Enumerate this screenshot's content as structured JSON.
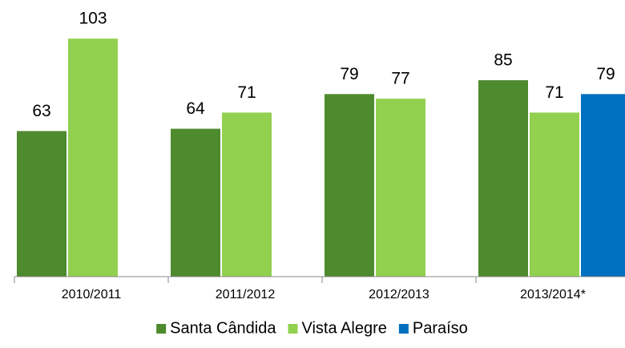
{
  "chart_data": {
    "type": "bar",
    "categories": [
      "2010/2011",
      "2011/2012",
      "2012/2013",
      "2013/2014*"
    ],
    "series": [
      {
        "name": "Santa Cândida",
        "color": "#4e8a2e",
        "values": [
          63,
          64,
          79,
          85
        ]
      },
      {
        "name": "Vista Alegre",
        "color": "#92d050",
        "values": [
          103,
          71,
          77,
          71
        ]
      },
      {
        "name": "Paraíso",
        "color": "#0070c0",
        "values": [
          null,
          null,
          null,
          79
        ]
      }
    ],
    "ylim": [
      0,
      110
    ]
  }
}
